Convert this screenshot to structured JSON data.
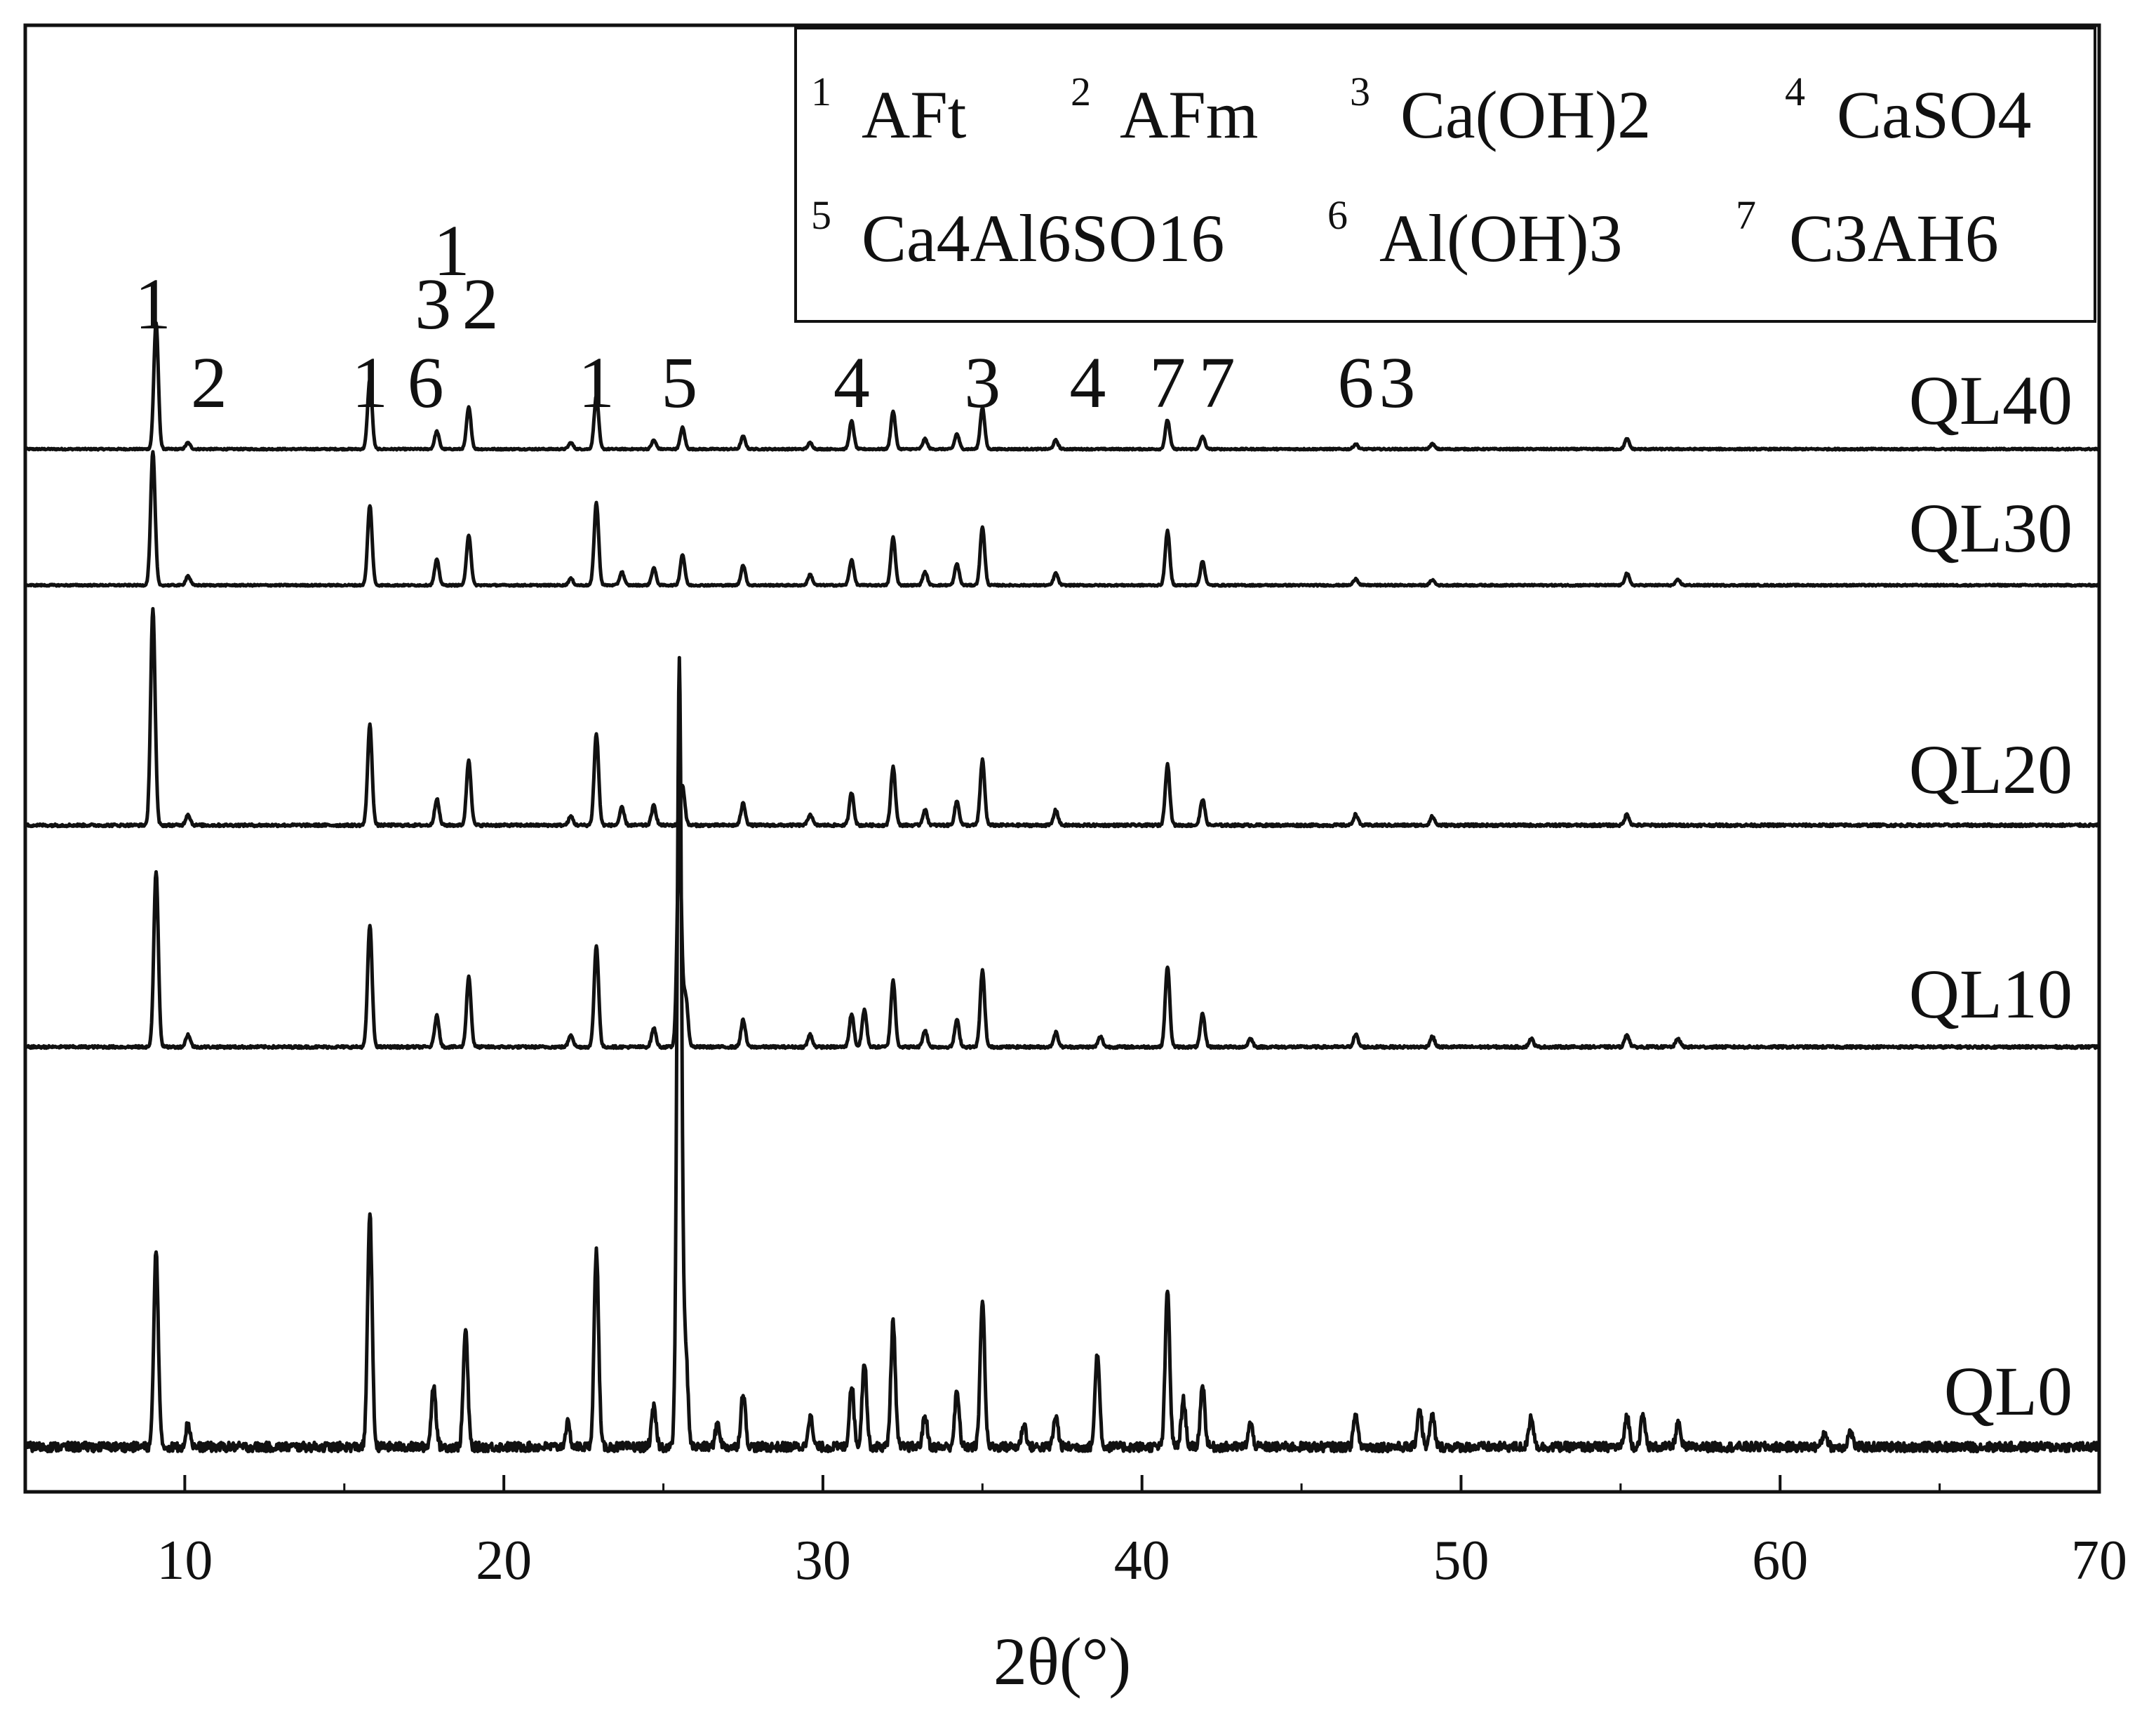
{
  "chart_data": {
    "type": "line",
    "title": "",
    "xlabel": "2θ(°)",
    "ylabel": "",
    "xlim": [
      5,
      70
    ],
    "x_ticks": [
      "10",
      "20",
      "30",
      "40",
      "50",
      "60",
      "70"
    ],
    "grid": false,
    "line_color": "#111111",
    "legend": {
      "placement": "top-right",
      "rows": [
        [
          {
            "num": "1",
            "name": "AFt"
          },
          {
            "num": "2",
            "name": "AFm"
          },
          {
            "num": "3",
            "name": "Ca(OH)2"
          },
          {
            "num": "4",
            "name": "CaSO4"
          }
        ],
        [
          {
            "num": "5",
            "name": "Ca4Al6SO16"
          },
          {
            "num": "6",
            "name": "Al(OH)3"
          },
          {
            "num": "7",
            "name": "C3AH6"
          }
        ]
      ]
    },
    "series": [
      {
        "name": "QL40",
        "peaks": [
          [
            9.1,
            1.0
          ],
          [
            10.1,
            0.05
          ],
          [
            15.8,
            0.55
          ],
          [
            17.9,
            0.14
          ],
          [
            18.9,
            0.33
          ],
          [
            22.1,
            0.05
          ],
          [
            22.9,
            0.42
          ],
          [
            24.7,
            0.07
          ],
          [
            25.6,
            0.17
          ],
          [
            27.5,
            0.1
          ],
          [
            29.6,
            0.05
          ],
          [
            30.9,
            0.22
          ],
          [
            32.2,
            0.3
          ],
          [
            33.2,
            0.08
          ],
          [
            34.2,
            0.12
          ],
          [
            35.0,
            0.33
          ],
          [
            37.3,
            0.07
          ],
          [
            40.8,
            0.23
          ],
          [
            41.9,
            0.1
          ],
          [
            46.7,
            0.04
          ],
          [
            49.1,
            0.04
          ],
          [
            55.2,
            0.08
          ]
        ]
      },
      {
        "name": "QL30",
        "peaks": [
          [
            9.0,
            1.0
          ],
          [
            10.1,
            0.07
          ],
          [
            15.8,
            0.6
          ],
          [
            17.9,
            0.19
          ],
          [
            18.9,
            0.38
          ],
          [
            22.1,
            0.05
          ],
          [
            22.9,
            0.62
          ],
          [
            23.7,
            0.1
          ],
          [
            24.7,
            0.13
          ],
          [
            25.6,
            0.23
          ],
          [
            27.5,
            0.15
          ],
          [
            29.6,
            0.08
          ],
          [
            30.9,
            0.19
          ],
          [
            32.2,
            0.36
          ],
          [
            33.2,
            0.1
          ],
          [
            34.2,
            0.16
          ],
          [
            35.0,
            0.44
          ],
          [
            37.3,
            0.09
          ],
          [
            40.8,
            0.41
          ],
          [
            41.9,
            0.18
          ],
          [
            46.7,
            0.05
          ],
          [
            49.1,
            0.04
          ],
          [
            55.2,
            0.09
          ],
          [
            56.8,
            0.04
          ]
        ]
      },
      {
        "name": "QL20",
        "peaks": [
          [
            9.0,
            1.0
          ],
          [
            10.1,
            0.05
          ],
          [
            15.8,
            0.46
          ],
          [
            17.9,
            0.12
          ],
          [
            18.9,
            0.3
          ],
          [
            22.1,
            0.04
          ],
          [
            22.9,
            0.42
          ],
          [
            23.7,
            0.08
          ],
          [
            24.7,
            0.09
          ],
          [
            25.6,
            0.18
          ],
          [
            27.5,
            0.1
          ],
          [
            29.6,
            0.05
          ],
          [
            30.9,
            0.15
          ],
          [
            32.2,
            0.27
          ],
          [
            33.2,
            0.07
          ],
          [
            34.2,
            0.11
          ],
          [
            35.0,
            0.3
          ],
          [
            37.3,
            0.07
          ],
          [
            40.8,
            0.28
          ],
          [
            41.9,
            0.12
          ],
          [
            46.7,
            0.05
          ],
          [
            49.1,
            0.04
          ],
          [
            55.2,
            0.05
          ]
        ]
      },
      {
        "name": "QL10",
        "peaks": [
          [
            9.1,
            0.85
          ],
          [
            10.1,
            0.06
          ],
          [
            15.8,
            0.59
          ],
          [
            17.9,
            0.15
          ],
          [
            18.9,
            0.34
          ],
          [
            22.1,
            0.06
          ],
          [
            22.9,
            0.49
          ],
          [
            24.7,
            0.09
          ],
          [
            25.5,
            1.0
          ],
          [
            25.7,
            0.24
          ],
          [
            27.5,
            0.13
          ],
          [
            29.6,
            0.06
          ],
          [
            30.9,
            0.16
          ],
          [
            31.3,
            0.18
          ],
          [
            32.2,
            0.32
          ],
          [
            33.2,
            0.08
          ],
          [
            34.2,
            0.13
          ],
          [
            35.0,
            0.37
          ],
          [
            37.3,
            0.07
          ],
          [
            38.7,
            0.05
          ],
          [
            40.8,
            0.39
          ],
          [
            41.9,
            0.16
          ],
          [
            43.4,
            0.04
          ],
          [
            46.7,
            0.06
          ],
          [
            49.1,
            0.05
          ],
          [
            52.2,
            0.04
          ],
          [
            55.2,
            0.06
          ],
          [
            56.8,
            0.04
          ]
        ]
      },
      {
        "name": "QL0",
        "peaks": [
          [
            9.1,
            0.25
          ],
          [
            10.1,
            0.03
          ],
          [
            15.8,
            0.3
          ],
          [
            17.8,
            0.08
          ],
          [
            18.8,
            0.15
          ],
          [
            22.0,
            0.03
          ],
          [
            22.9,
            0.25
          ],
          [
            24.7,
            0.05
          ],
          [
            25.5,
            1.0
          ],
          [
            25.7,
            0.12
          ],
          [
            26.7,
            0.03
          ],
          [
            27.5,
            0.07
          ],
          [
            29.6,
            0.04
          ],
          [
            30.9,
            0.08
          ],
          [
            31.3,
            0.11
          ],
          [
            32.2,
            0.16
          ],
          [
            33.2,
            0.04
          ],
          [
            34.2,
            0.07
          ],
          [
            35.0,
            0.19
          ],
          [
            36.3,
            0.03
          ],
          [
            37.3,
            0.04
          ],
          [
            38.6,
            0.12
          ],
          [
            40.8,
            0.2
          ],
          [
            41.3,
            0.06
          ],
          [
            41.9,
            0.08
          ],
          [
            43.4,
            0.03
          ],
          [
            46.7,
            0.04
          ],
          [
            48.7,
            0.05
          ],
          [
            49.1,
            0.04
          ],
          [
            52.2,
            0.04
          ],
          [
            55.2,
            0.04
          ],
          [
            55.7,
            0.04
          ],
          [
            56.8,
            0.03
          ],
          [
            61.4,
            0.02
          ],
          [
            62.2,
            0.02
          ]
        ]
      }
    ],
    "annotations": [
      {
        "text": "1",
        "x": 9.0,
        "series": "QL40",
        "level": 2
      },
      {
        "text": "2",
        "x": 10.1,
        "series": "QL40",
        "level": 1
      },
      {
        "text": "1",
        "x": 15.8,
        "series": "QL40",
        "level": 1
      },
      {
        "text": "3",
        "x": 18.0,
        "series": "QL40",
        "level": 2
      },
      {
        "text": "6",
        "x": 17.9,
        "series": "QL40",
        "level": 1
      },
      {
        "text": "1",
        "x": 18.8,
        "series": "QL40",
        "level": 3
      },
      {
        "text": "2",
        "x": 19.0,
        "series": "QL40",
        "level": 2
      },
      {
        "text": "1",
        "x": 22.9,
        "series": "QL40",
        "level": 1
      },
      {
        "text": "5",
        "x": 25.5,
        "series": "QL40",
        "level": 1
      },
      {
        "text": "4",
        "x": 30.9,
        "series": "QL40",
        "level": 1
      },
      {
        "text": "3",
        "x": 35.0,
        "series": "QL40",
        "level": 1
      },
      {
        "text": "4",
        "x": 38.3,
        "series": "QL40",
        "level": 1
      },
      {
        "text": "7",
        "x": 40.8,
        "series": "QL40",
        "level": 1
      },
      {
        "text": "7",
        "x": 42.0,
        "series": "QL40",
        "level": 1
      },
      {
        "text": "6",
        "x": 46.7,
        "series": "QL40",
        "level": 1
      },
      {
        "text": "3",
        "x": 48.0,
        "series": "QL40",
        "level": 1
      }
    ]
  }
}
